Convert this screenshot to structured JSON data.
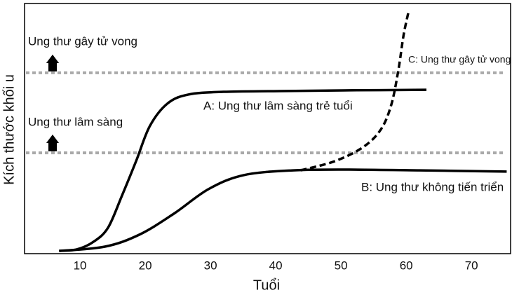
{
  "chart_data": {
    "type": "line",
    "x_label": "Tuổi",
    "y_label": "Kích thước khối u",
    "xlim": [
      1.5,
      76
    ],
    "xticks": [
      10,
      20,
      30,
      40,
      50,
      60,
      70
    ],
    "ylim": [
      0,
      100
    ],
    "thresholds": [
      {
        "label": "Ung thư gây tử vong",
        "value": 72.3,
        "color": "#aaaaaa"
      },
      {
        "label": "Ung thư lâm sàng",
        "value": 40.3,
        "color": "#aaaaaa"
      }
    ],
    "series": [
      {
        "name": "A: Ung thư lâm sàng trẻ tuổi",
        "color": "#000000",
        "dashed": false,
        "x": [
          6.8,
          9.5,
          12.1,
          14.3,
          16.4,
          18.6,
          20.7,
          23.4,
          26.6,
          32,
          40.5,
          51.3,
          63.1
        ],
        "values": [
          1.1,
          1.7,
          4.8,
          10.4,
          23,
          37,
          51,
          60,
          63.6,
          64.7,
          65,
          65.3,
          65.5
        ]
      },
      {
        "name": "B: Ung thư không tiến triển",
        "color": "#000000",
        "dashed": false,
        "x": [
          6.8,
          13.8,
          19.1,
          24.4,
          29.7,
          35.1,
          42.7,
          51.3,
          62,
          75.4
        ],
        "values": [
          1.1,
          2.8,
          7.6,
          16,
          25.8,
          31.4,
          33.3,
          33.6,
          33.3,
          32.8
        ]
      },
      {
        "name": "C: Ung thư gây tử vong",
        "color": "#000000",
        "dashed": true,
        "x": [
          43.8,
          49.1,
          53.4,
          56.1,
          57.7,
          58.8,
          59.6,
          60.4
        ],
        "values": [
          33.3,
          37,
          42.6,
          49.6,
          59.4,
          73.4,
          87.4,
          97.2
        ]
      }
    ]
  }
}
